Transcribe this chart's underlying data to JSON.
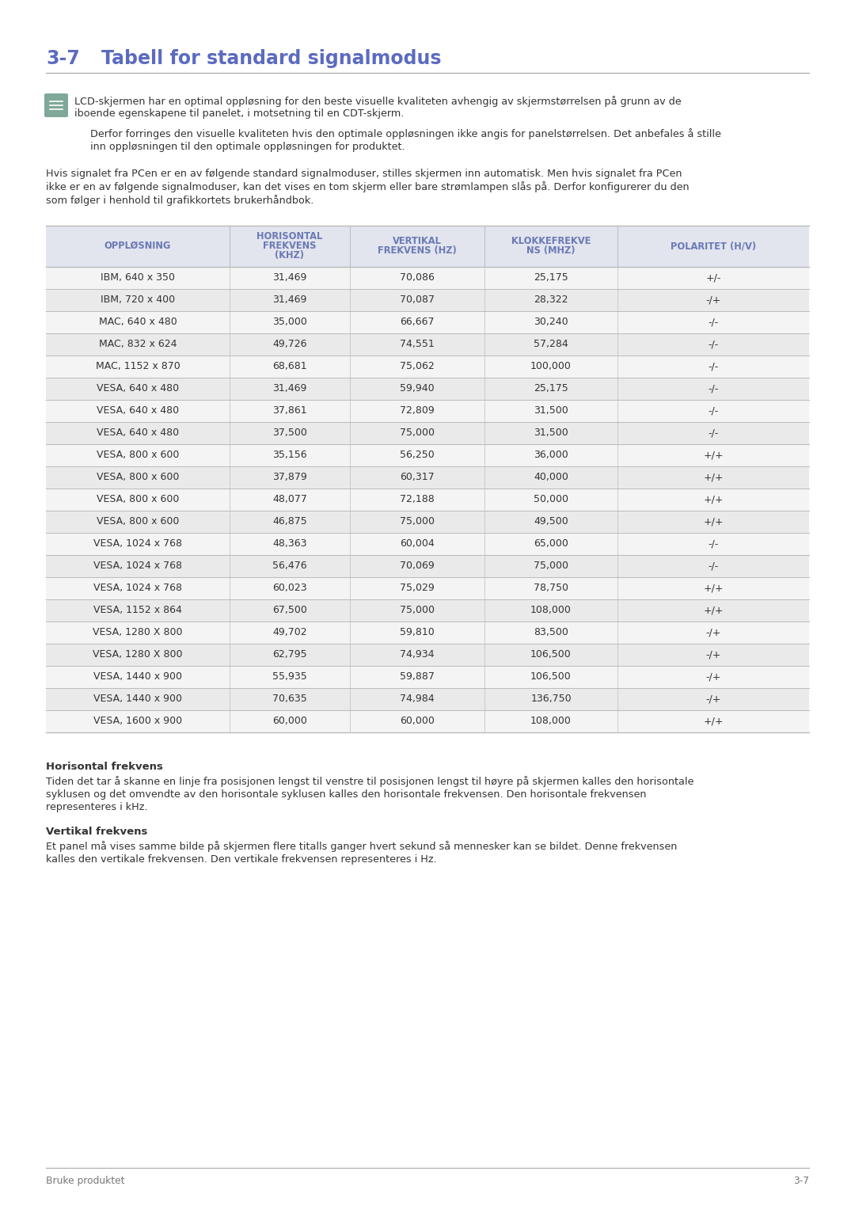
{
  "title_num": "3-7",
  "title_text": "Tabell for standard signalmodus",
  "title_color": "#5c6bc0",
  "divider_color": "#aaaaaa",
  "icon_color": "#80a899",
  "note1_line1": "LCD-skjermen har en optimal oppløsning for den beste visuelle kvaliteten avhengig av skjermstørrelsen på grunn av de",
  "note1_line2": "iboende egenskapene til panelet, i motsetning til en CDT-skjerm.",
  "note2_line1": "Derfor forringes den visuelle kvaliteten hvis den optimale oppløsningen ikke angis for panelstørrelsen. Det anbefales å stille",
  "note2_line2": "inn oppløsningen til den optimale oppløsningen for produktet.",
  "para_lines": [
    "Hvis signalet fra PCen er en av følgende standard signalmoduser, stilles skjermen inn automatisk. Men hvis signalet fra PCen",
    "ikke er en av følgende signalmoduser, kan det vises en tom skjerm eller bare strømlampen slås på. Derfor konfigurerer du den",
    "som følger i henhold til grafikkortets brukerhåndbok."
  ],
  "table_header": [
    "OPPLØSNING",
    "HORISONTAL\nFREKVENS\n(KHZ)",
    "VERTIKAL\nFREKVENS (HZ)",
    "KLOKKEFREKVE\nNS (MHZ)",
    "POLARITET (H/V)"
  ],
  "table_header_text_color": "#6b7ab5",
  "table_header_bg": "#e2e4ee",
  "table_row_bg_even": "#f4f4f4",
  "table_row_bg_odd": "#eaeaea",
  "table_border_color": "#bbbbbb",
  "table_data": [
    [
      "IBM, 640 x 350",
      "31,469",
      "70,086",
      "25,175",
      "+/-"
    ],
    [
      "IBM, 720 x 400",
      "31,469",
      "70,087",
      "28,322",
      "-/+"
    ],
    [
      "MAC, 640 x 480",
      "35,000",
      "66,667",
      "30,240",
      "-/-"
    ],
    [
      "MAC, 832 x 624",
      "49,726",
      "74,551",
      "57,284",
      "-/-"
    ],
    [
      "MAC, 1152 x 870",
      "68,681",
      "75,062",
      "100,000",
      "-/-"
    ],
    [
      "VESA, 640 x 480",
      "31,469",
      "59,940",
      "25,175",
      "-/-"
    ],
    [
      "VESA, 640 x 480",
      "37,861",
      "72,809",
      "31,500",
      "-/-"
    ],
    [
      "VESA, 640 x 480",
      "37,500",
      "75,000",
      "31,500",
      "-/-"
    ],
    [
      "VESA, 800 x 600",
      "35,156",
      "56,250",
      "36,000",
      "+/+"
    ],
    [
      "VESA, 800 x 600",
      "37,879",
      "60,317",
      "40,000",
      "+/+"
    ],
    [
      "VESA, 800 x 600",
      "48,077",
      "72,188",
      "50,000",
      "+/+"
    ],
    [
      "VESA, 800 x 600",
      "46,875",
      "75,000",
      "49,500",
      "+/+"
    ],
    [
      "VESA, 1024 x 768",
      "48,363",
      "60,004",
      "65,000",
      "-/-"
    ],
    [
      "VESA, 1024 x 768",
      "56,476",
      "70,069",
      "75,000",
      "-/-"
    ],
    [
      "VESA, 1024 x 768",
      "60,023",
      "75,029",
      "78,750",
      "+/+"
    ],
    [
      "VESA, 1152 x 864",
      "67,500",
      "75,000",
      "108,000",
      "+/+"
    ],
    [
      "VESA, 1280 X 800",
      "49,702",
      "59,810",
      "83,500",
      "-/+"
    ],
    [
      "VESA, 1280 X 800",
      "62,795",
      "74,934",
      "106,500",
      "-/+"
    ],
    [
      "VESA, 1440 x 900",
      "55,935",
      "59,887",
      "106,500",
      "-/+"
    ],
    [
      "VESA, 1440 x 900",
      "70,635",
      "74,984",
      "136,750",
      "-/+"
    ],
    [
      "VESA, 1600 x 900",
      "60,000",
      "60,000",
      "108,000",
      "+/+"
    ]
  ],
  "hori_title": "Horisontal frekvens",
  "hori_lines": [
    "Tiden det tar å skanne en linje fra posisjonen lengst til venstre til posisjonen lengst til høyre på skjermen kalles den horisontale",
    "syklusen og det omvendte av den horisontale syklusen kalles den horisontale frekvensen. Den horisontale frekvensen",
    "representeres i kHz."
  ],
  "vert_title": "Vertikal frekvens",
  "vert_lines": [
    "Et panel må vises samme bilde på skjermen flere titalls ganger hvert sekund så mennesker kan se bildet. Denne frekvensen",
    "kalles den vertikale frekvensen. Den vertikale frekvensen representeres i Hz."
  ],
  "footer_left": "Bruke produktet",
  "footer_right": "3-7",
  "footer_color": "#777777",
  "bg_color": "#ffffff",
  "text_color": "#333333"
}
